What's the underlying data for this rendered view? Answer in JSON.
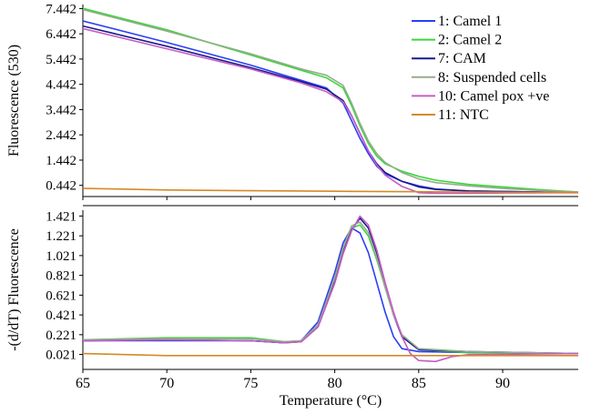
{
  "chart_data": [
    {
      "type": "line",
      "panel": "top",
      "ylabel": "Fluorescence (530)",
      "xlim": [
        65,
        94.5
      ],
      "ylim": [
        0,
        7.6
      ],
      "yticks": [
        "7.442",
        "6.442",
        "5.442",
        "4.442",
        "3.442",
        "2.442",
        "1.442",
        "0.442"
      ],
      "legend_position": "top-right",
      "series": [
        {
          "name": "1: Camel 1",
          "color": "#2a3ef5",
          "points": [
            [
              65,
              6.95
            ],
            [
              70,
              6.1
            ],
            [
              75,
              5.2
            ],
            [
              78,
              4.6
            ],
            [
              79.5,
              4.3
            ],
            [
              80.5,
              3.7
            ],
            [
              81,
              3.0
            ],
            [
              81.5,
              2.3
            ],
            [
              82,
              1.7
            ],
            [
              82.5,
              1.2
            ],
            [
              83,
              0.9
            ],
            [
              84,
              0.6
            ],
            [
              85,
              0.42
            ],
            [
              86,
              0.3
            ],
            [
              88,
              0.22
            ],
            [
              90,
              0.2
            ],
            [
              93,
              0.17
            ],
            [
              94.5,
              0.16
            ]
          ]
        },
        {
          "name": "2: Camel 2",
          "color": "#3bd63b",
          "points": [
            [
              65,
              7.45
            ],
            [
              70,
              6.6
            ],
            [
              75,
              5.6
            ],
            [
              78,
              5.0
            ],
            [
              79.5,
              4.7
            ],
            [
              80.5,
              4.3
            ],
            [
              81,
              3.6
            ],
            [
              81.5,
              2.8
            ],
            [
              82,
              2.1
            ],
            [
              82.5,
              1.6
            ],
            [
              83,
              1.3
            ],
            [
              84,
              1.0
            ],
            [
              85,
              0.8
            ],
            [
              86,
              0.65
            ],
            [
              88,
              0.48
            ],
            [
              90,
              0.38
            ],
            [
              92,
              0.28
            ],
            [
              94.5,
              0.18
            ]
          ]
        },
        {
          "name": "7: CAM",
          "color": "#1a1a8c",
          "points": [
            [
              65,
              6.75
            ],
            [
              70,
              5.95
            ],
            [
              75,
              5.1
            ],
            [
              78,
              4.55
            ],
            [
              79.5,
              4.25
            ],
            [
              80.5,
              3.8
            ],
            [
              81,
              3.2
            ],
            [
              81.5,
              2.5
            ],
            [
              82,
              1.8
            ],
            [
              82.5,
              1.3
            ],
            [
              83,
              0.95
            ],
            [
              84,
              0.6
            ],
            [
              85,
              0.38
            ],
            [
              86,
              0.28
            ],
            [
              88,
              0.22
            ],
            [
              90,
              0.2
            ],
            [
              93,
              0.17
            ],
            [
              94.5,
              0.16
            ]
          ]
        },
        {
          "name": "8: Suspended cells",
          "color": "#95ac8c",
          "points": [
            [
              65,
              7.4
            ],
            [
              70,
              6.55
            ],
            [
              75,
              5.65
            ],
            [
              78,
              5.05
            ],
            [
              79.5,
              4.8
            ],
            [
              80.5,
              4.4
            ],
            [
              81,
              3.7
            ],
            [
              81.5,
              2.9
            ],
            [
              82,
              2.2
            ],
            [
              82.5,
              1.7
            ],
            [
              83,
              1.35
            ],
            [
              84,
              0.95
            ],
            [
              85,
              0.7
            ],
            [
              86,
              0.55
            ],
            [
              88,
              0.42
            ],
            [
              90,
              0.32
            ],
            [
              92,
              0.25
            ],
            [
              94.5,
              0.18
            ]
          ]
        },
        {
          "name": "10: Camel pox +ve",
          "color": "#c65cc6",
          "points": [
            [
              65,
              6.65
            ],
            [
              70,
              5.85
            ],
            [
              75,
              5.05
            ],
            [
              78,
              4.5
            ],
            [
              79.5,
              4.15
            ],
            [
              80.5,
              3.75
            ],
            [
              81,
              3.2
            ],
            [
              81.5,
              2.5
            ],
            [
              82,
              1.8
            ],
            [
              82.5,
              1.25
            ],
            [
              83,
              0.85
            ],
            [
              84,
              0.4
            ],
            [
              85,
              0.15
            ],
            [
              86,
              0.13
            ],
            [
              88,
              0.13
            ],
            [
              90,
              0.14
            ],
            [
              93,
              0.15
            ],
            [
              94.5,
              0.15
            ]
          ]
        },
        {
          "name": "11: NTC",
          "color": "#d48a25",
          "points": [
            [
              65,
              0.32
            ],
            [
              67,
              0.3
            ],
            [
              70,
              0.26
            ],
            [
              75,
              0.23
            ],
            [
              80,
              0.21
            ],
            [
              85,
              0.19
            ],
            [
              90,
              0.17
            ],
            [
              94.5,
              0.16
            ]
          ]
        }
      ]
    },
    {
      "type": "line",
      "panel": "bottom",
      "xlabel": "Temperature (°C)",
      "ylabel": "-(d/dT) Fluorescence",
      "xlim": [
        65,
        94.5
      ],
      "ylim": [
        -0.13,
        1.48
      ],
      "xticks": [
        "65",
        "70",
        "75",
        "80",
        "85",
        "90"
      ],
      "yticks": [
        "1.421",
        "1.221",
        "1.021",
        "0.821",
        "0.621",
        "0.421",
        "0.221",
        "0.021"
      ],
      "series": [
        {
          "name": "1: Camel 1",
          "color": "#2a3ef5",
          "points": [
            [
              65,
              0.16
            ],
            [
              70,
              0.16
            ],
            [
              75,
              0.16
            ],
            [
              77,
              0.14
            ],
            [
              78,
              0.16
            ],
            [
              79,
              0.35
            ],
            [
              80,
              0.85
            ],
            [
              80.5,
              1.15
            ],
            [
              81,
              1.3
            ],
            [
              81.5,
              1.25
            ],
            [
              82,
              1.05
            ],
            [
              82.5,
              0.75
            ],
            [
              83,
              0.45
            ],
            [
              83.5,
              0.2
            ],
            [
              84,
              0.08
            ],
            [
              85,
              0.05
            ],
            [
              88,
              0.04
            ],
            [
              94.5,
              0.03
            ]
          ]
        },
        {
          "name": "2: Camel 2",
          "color": "#3bd63b",
          "points": [
            [
              65,
              0.17
            ],
            [
              70,
              0.19
            ],
            [
              75,
              0.19
            ],
            [
              77,
              0.15
            ],
            [
              78,
              0.16
            ],
            [
              79,
              0.32
            ],
            [
              80,
              0.78
            ],
            [
              80.5,
              1.08
            ],
            [
              81,
              1.3
            ],
            [
              81.5,
              1.33
            ],
            [
              82,
              1.22
            ],
            [
              82.5,
              0.98
            ],
            [
              83,
              0.7
            ],
            [
              83.5,
              0.42
            ],
            [
              84,
              0.22
            ],
            [
              85,
              0.07
            ],
            [
              88,
              0.04
            ],
            [
              94.5,
              0.03
            ]
          ]
        },
        {
          "name": "7: CAM",
          "color": "#1a1a8c",
          "points": [
            [
              65,
              0.16
            ],
            [
              70,
              0.17
            ],
            [
              75,
              0.16
            ],
            [
              77,
              0.14
            ],
            [
              78,
              0.15
            ],
            [
              79,
              0.3
            ],
            [
              80,
              0.75
            ],
            [
              80.5,
              1.05
            ],
            [
              81,
              1.28
            ],
            [
              81.5,
              1.4
            ],
            [
              82,
              1.3
            ],
            [
              82.5,
              1.05
            ],
            [
              83,
              0.72
            ],
            [
              83.5,
              0.42
            ],
            [
              84,
              0.2
            ],
            [
              85,
              0.07
            ],
            [
              88,
              0.05
            ],
            [
              94.5,
              0.03
            ]
          ]
        },
        {
          "name": "8: Suspended cells",
          "color": "#95ac8c",
          "points": [
            [
              65,
              0.17
            ],
            [
              70,
              0.18
            ],
            [
              75,
              0.18
            ],
            [
              77,
              0.15
            ],
            [
              78,
              0.16
            ],
            [
              79,
              0.32
            ],
            [
              80,
              0.8
            ],
            [
              80.5,
              1.1
            ],
            [
              81,
              1.32
            ],
            [
              81.5,
              1.36
            ],
            [
              82,
              1.25
            ],
            [
              82.5,
              1.0
            ],
            [
              83,
              0.7
            ],
            [
              83.5,
              0.42
            ],
            [
              84,
              0.22
            ],
            [
              85,
              0.08
            ],
            [
              88,
              0.05
            ],
            [
              94.5,
              0.03
            ]
          ]
        },
        {
          "name": "10: Camel pox +ve",
          "color": "#c65cc6",
          "points": [
            [
              65,
              0.16
            ],
            [
              70,
              0.17
            ],
            [
              75,
              0.16
            ],
            [
              77,
              0.14
            ],
            [
              78,
              0.15
            ],
            [
              79,
              0.3
            ],
            [
              80,
              0.74
            ],
            [
              80.5,
              1.04
            ],
            [
              81,
              1.27
            ],
            [
              81.5,
              1.42
            ],
            [
              82,
              1.33
            ],
            [
              82.5,
              1.08
            ],
            [
              83,
              0.75
            ],
            [
              83.5,
              0.45
            ],
            [
              84,
              0.2
            ],
            [
              84.5,
              0.03
            ],
            [
              85,
              -0.04
            ],
            [
              86,
              -0.05
            ],
            [
              87,
              0.0
            ],
            [
              88,
              0.02
            ],
            [
              94.5,
              0.03
            ]
          ]
        },
        {
          "name": "11: NTC",
          "color": "#d48a25",
          "points": [
            [
              65,
              0.03
            ],
            [
              70,
              0.01
            ],
            [
              75,
              0.01
            ],
            [
              80,
              0.01
            ],
            [
              85,
              0.01
            ],
            [
              90,
              0.01
            ],
            [
              94.5,
              0.01
            ]
          ]
        }
      ]
    }
  ]
}
